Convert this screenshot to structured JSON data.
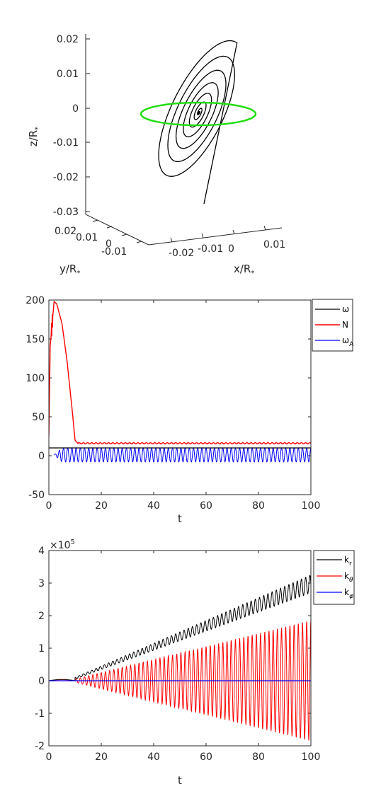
{
  "chart_data": [
    {
      "type": "line",
      "projection": "3d",
      "xlabel": "x/R",
      "xlabel_sub": "*",
      "ylabel": "y/R",
      "ylabel_sub": "*",
      "zlabel": "z/R",
      "zlabel_sub": "*",
      "xticks": [
        "-0.02",
        "-0.01",
        "0",
        "0.01"
      ],
      "yticks": [
        "0.02",
        "0.01",
        "0",
        "-0.01"
      ],
      "zticks": [
        "0.02",
        "0.01",
        "0",
        "-0.01",
        "-0.02",
        "-0.03"
      ],
      "zlim": [
        -0.03,
        0.02
      ],
      "series": [
        {
          "description": "trajectory",
          "color": "#000000"
        },
        {
          "description": "reference ring",
          "color": "#22dd11"
        }
      ]
    },
    {
      "type": "line",
      "xlabel": "t",
      "xlim": [
        0,
        100
      ],
      "ylim": [
        -50,
        200
      ],
      "xticks": [
        "0",
        "20",
        "40",
        "60",
        "80",
        "100"
      ],
      "yticks": [
        "200",
        "150",
        "100",
        "50",
        "0",
        "-50"
      ],
      "legend_position": "outside-top-right",
      "series": [
        {
          "name": "ω",
          "sub": "",
          "color": "#000000",
          "x": [
            0,
            100
          ],
          "y": [
            10,
            10
          ]
        },
        {
          "name": "N",
          "sub": "",
          "color": "#ff0000",
          "x": [
            0,
            0.5,
            1,
            2,
            3,
            5,
            7,
            9,
            10,
            11,
            100
          ],
          "y": [
            25,
            140,
            160,
            198,
            195,
            170,
            120,
            55,
            20,
            16,
            16
          ]
        },
        {
          "name": "ω",
          "sub": "A",
          "color": "#0000ff",
          "oscillation": {
            "x_start": 2,
            "center": 1,
            "amplitude": 9,
            "period": 1.6
          }
        }
      ]
    },
    {
      "type": "line",
      "xlabel": "t",
      "xlim": [
        0,
        100
      ],
      "ylim": [
        -2,
        4
      ],
      "exponent": "×10",
      "exponent_power": "5",
      "xticks": [
        "0",
        "20",
        "40",
        "60",
        "80",
        "100"
      ],
      "yticks": [
        "4",
        "3",
        "2",
        "1",
        "0",
        "-1",
        "-2"
      ],
      "legend_position": "outside-top-right",
      "series": [
        {
          "name": "k",
          "sub": "r",
          "color": "#000000",
          "band": {
            "x": [
              10,
              100
            ],
            "low": [
              0.05,
              2.7
            ],
            "high": [
              0.1,
              3.25
            ]
          }
        },
        {
          "name": "k",
          "sub": "θ",
          "color": "#ff0000",
          "envelope": {
            "x": [
              10,
              100
            ],
            "high": [
              0.05,
              1.85
            ],
            "low": [
              -0.05,
              -1.85
            ],
            "period": 1.6
          }
        },
        {
          "name": "k",
          "sub": "φ",
          "color": "#0000ff",
          "x": [
            0,
            100
          ],
          "y": [
            0,
            0
          ]
        }
      ]
    }
  ]
}
